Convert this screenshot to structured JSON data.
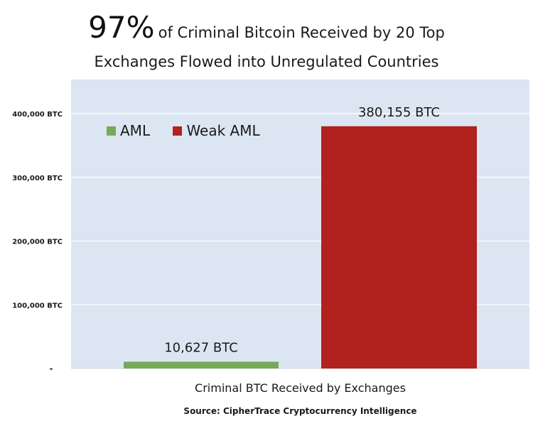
{
  "colors": {
    "plot_background": "#dce6f2",
    "gridline": "#ffffff",
    "aml": "#77a95a",
    "weak_aml": "#b1211d"
  },
  "chart_data": {
    "type": "bar",
    "title_big": "97%",
    "title_rest_line1": "of Criminal Bitcoin Received by 20 Top",
    "title_line2": "Exchanges Flowed into Unregulated Countries",
    "xlabel": "Criminal BTC Received by Exchanges",
    "ylabel": "",
    "source": "Source: CipherTrace Cryptocurrency Intelligence",
    "categories": [
      "Criminal BTC Received by Exchanges"
    ],
    "series": [
      {
        "name": "AML",
        "values": [
          10627
        ],
        "label": "10,627 BTC",
        "color": "#77a95a"
      },
      {
        "name": "Weak AML",
        "values": [
          380155
        ],
        "label": "380,155 BTC",
        "color": "#b1211d"
      }
    ],
    "ylim": [
      0,
      400000
    ],
    "yticks": [
      0,
      100000,
      200000,
      300000,
      400000
    ],
    "ytick_labels": [
      "-",
      "100,000 BTC",
      "200,000 BTC",
      "300,000 BTC",
      "400,000 BTC"
    ],
    "grid": true,
    "legend_position": "top-left"
  }
}
